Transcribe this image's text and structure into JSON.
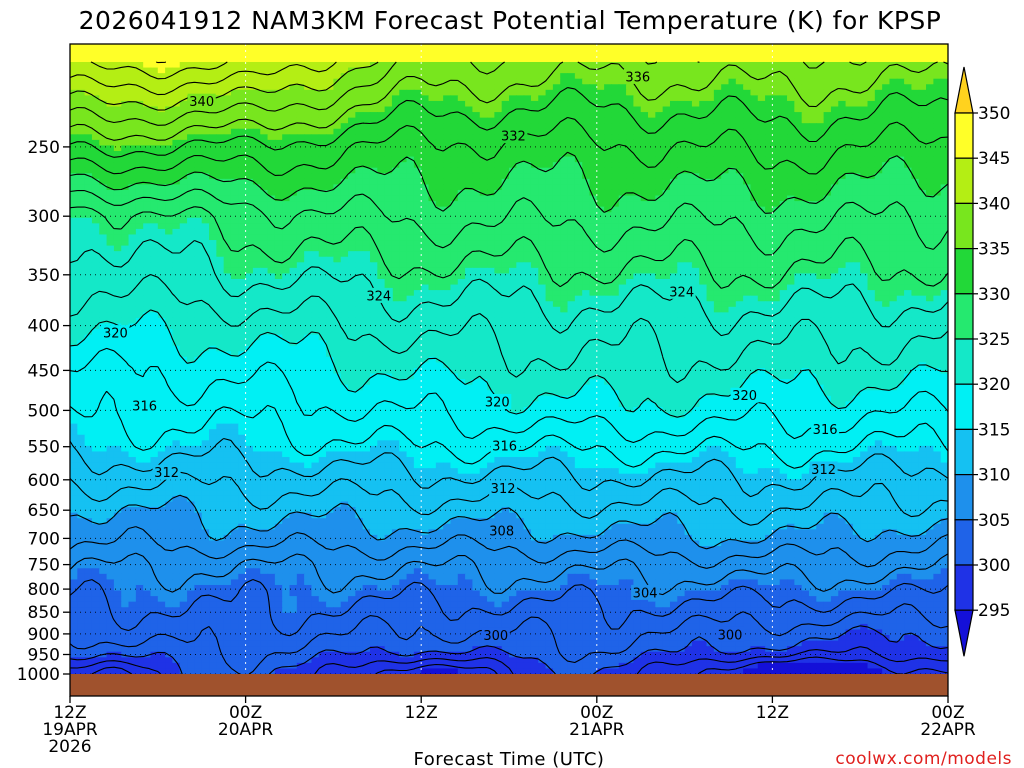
{
  "chart_data": {
    "type": "heatmap",
    "title": "2026041912 NAM3KM Forecast Potential Temperature (K) for KPSP",
    "xlabel": "Forecast Time (UTC)",
    "ylabel": "",
    "credit": "coolwx.com/models",
    "y_axis": {
      "scale": "pressure (inverted)",
      "range": [
        1000,
        200
      ],
      "ticks": [
        {
          "value": 250,
          "label": "250"
        },
        {
          "value": 300,
          "label": "300"
        },
        {
          "value": 350,
          "label": "350"
        },
        {
          "value": 400,
          "label": "400"
        },
        {
          "value": 450,
          "label": "450"
        },
        {
          "value": 500,
          "label": "500"
        },
        {
          "value": 550,
          "label": "550"
        },
        {
          "value": 600,
          "label": "600"
        },
        {
          "value": 650,
          "label": "650"
        },
        {
          "value": 700,
          "label": "700"
        },
        {
          "value": 750,
          "label": "750"
        },
        {
          "value": 800,
          "label": "800"
        },
        {
          "value": 850,
          "label": "850"
        },
        {
          "value": 900,
          "label": "900"
        },
        {
          "value": 950,
          "label": "950"
        },
        {
          "value": 1000,
          "label": "1000"
        }
      ]
    },
    "x_axis": {
      "range_hours": [
        0,
        60
      ],
      "ticks": [
        {
          "hour": 0,
          "lines": [
            "12Z",
            "19APR",
            "2026"
          ]
        },
        {
          "hour": 12,
          "lines": [
            "00Z",
            "20APR"
          ]
        },
        {
          "hour": 24,
          "lines": [
            "12Z"
          ]
        },
        {
          "hour": 36,
          "lines": [
            "00Z",
            "21APR"
          ]
        },
        {
          "hour": 48,
          "lines": [
            "12Z"
          ]
        },
        {
          "hour": 60,
          "lines": [
            "00Z",
            "22APR"
          ]
        }
      ]
    },
    "grid": true,
    "colorbar": {
      "labels": [
        "350",
        "345",
        "340",
        "335",
        "330",
        "325",
        "320",
        "315",
        "310",
        "305",
        "300",
        "295"
      ],
      "levels": [
        350,
        345,
        340,
        335,
        330,
        325,
        320,
        315,
        310,
        305,
        300,
        295
      ],
      "colors": {
        "above": "#f7a800",
        "350-above": "#ffd21e",
        "345-350": "#ffff28",
        "340-345": "#b4ee14",
        "335-340": "#78e61e",
        "330-335": "#22d838",
        "325-330": "#25e96f",
        "320-325": "#14e8c8",
        "315-320": "#00f0f4",
        "310-315": "#15c1f2",
        "305-310": "#1e90ec",
        "300-305": "#1f63e8",
        "295-300": "#1f32e6",
        "below": "#1410d8"
      }
    },
    "contour_labels": [
      {
        "text": "340",
        "hour": 9.0,
        "pressure": 222
      },
      {
        "text": "336",
        "hour": 38.8,
        "pressure": 208
      },
      {
        "text": "332",
        "hour": 30.3,
        "pressure": 243
      },
      {
        "text": "324",
        "hour": 21.1,
        "pressure": 370
      },
      {
        "text": "324",
        "hour": 41.8,
        "pressure": 366
      },
      {
        "text": "320",
        "hour": 3.1,
        "pressure": 408
      },
      {
        "text": "320",
        "hour": 29.2,
        "pressure": 489
      },
      {
        "text": "320",
        "hour": 46.1,
        "pressure": 481
      },
      {
        "text": "316",
        "hour": 5.1,
        "pressure": 494
      },
      {
        "text": "316",
        "hour": 29.7,
        "pressure": 549
      },
      {
        "text": "316",
        "hour": 51.6,
        "pressure": 526
      },
      {
        "text": "312",
        "hour": 6.6,
        "pressure": 589
      },
      {
        "text": "312",
        "hour": 29.6,
        "pressure": 614
      },
      {
        "text": "312",
        "hour": 51.5,
        "pressure": 584
      },
      {
        "text": "308",
        "hour": 29.5,
        "pressure": 687
      },
      {
        "text": "304",
        "hour": 39.3,
        "pressure": 808
      },
      {
        "text": "300",
        "hour": 29.1,
        "pressure": 904
      },
      {
        "text": "300",
        "hour": 45.1,
        "pressure": 902
      }
    ],
    "isotherm_levels": [
      360,
      358,
      356,
      354,
      352,
      350,
      348,
      346,
      344,
      342,
      340,
      338,
      336,
      334,
      332,
      330,
      328,
      326,
      324,
      322,
      320,
      318,
      316,
      314,
      312,
      310,
      308,
      306,
      304,
      302,
      300,
      298,
      296
    ],
    "sample_columns": [
      {
        "hour": 0,
        "pressure": [
          200,
          250,
          300,
          350,
          400,
          450,
          500,
          550,
          600,
          650,
          700,
          750,
          800,
          850,
          900,
          950,
          1000
        ],
        "theta": [
          345.0,
          334.4,
          324.6,
          322.4,
          320.3,
          317.8,
          316.7,
          314.9,
          312.4,
          309.8,
          308.4,
          306.3,
          304.8,
          303.4,
          302.2,
          300.5,
          298.2
        ]
      },
      {
        "hour": 12,
        "pressure": [
          200,
          250,
          300,
          350,
          400,
          450,
          500,
          550,
          600,
          650,
          700,
          750,
          800,
          850,
          900,
          950,
          1000
        ],
        "theta": [
          344.5,
          333.8,
          327.0,
          324.2,
          320.8,
          318.6,
          316.7,
          315.0,
          312.6,
          310.6,
          308.9,
          306.2,
          304.8,
          304.1,
          303.3,
          302.2,
          301.3
        ]
      },
      {
        "hour": 24,
        "pressure": [
          200,
          250,
          300,
          350,
          400,
          450,
          500,
          550,
          600,
          650,
          700,
          750,
          800,
          850,
          900,
          950,
          1000
        ],
        "theta": [
          338.0,
          331.4,
          328.4,
          325.2,
          322.7,
          320.4,
          318.4,
          316.0,
          313.4,
          311.1,
          308.8,
          306.4,
          304.9,
          303.2,
          301.6,
          300.0,
          297.5
        ]
      },
      {
        "hour": 36,
        "pressure": [
          200,
          250,
          300,
          350,
          400,
          450,
          500,
          550,
          600,
          650,
          700,
          750,
          800,
          850,
          900,
          950,
          1000
        ],
        "theta": [
          336.8,
          331.5,
          328.5,
          325.5,
          323.0,
          321.5,
          319.7,
          316.3,
          313.6,
          311.3,
          309.3,
          306.7,
          305.0,
          303.6,
          302.6,
          301.7,
          300.9
        ]
      },
      {
        "hour": 48,
        "pressure": [
          200,
          250,
          300,
          350,
          400,
          450,
          500,
          550,
          600,
          650,
          700,
          750,
          800,
          850,
          900,
          950,
          1000
        ],
        "theta": [
          337.4,
          332.6,
          328.6,
          325.7,
          323.1,
          321.0,
          318.9,
          316.4,
          313.9,
          311.9,
          309.9,
          307.3,
          305.0,
          303.0,
          300.8,
          299.6,
          297.0
        ]
      },
      {
        "hour": 60,
        "pressure": [
          200,
          250,
          300,
          350,
          400,
          450,
          500,
          550,
          600,
          650,
          700,
          750,
          800,
          850,
          900,
          950,
          1000
        ],
        "theta": [
          337.0,
          331.5,
          328.0,
          325.5,
          322.5,
          320.5,
          318.0,
          315.5,
          313.0,
          311.0,
          308.5,
          306.5,
          304.5,
          302.5,
          300.0,
          298.5,
          297.0
        ]
      }
    ],
    "ground_color": "#a0522d"
  }
}
